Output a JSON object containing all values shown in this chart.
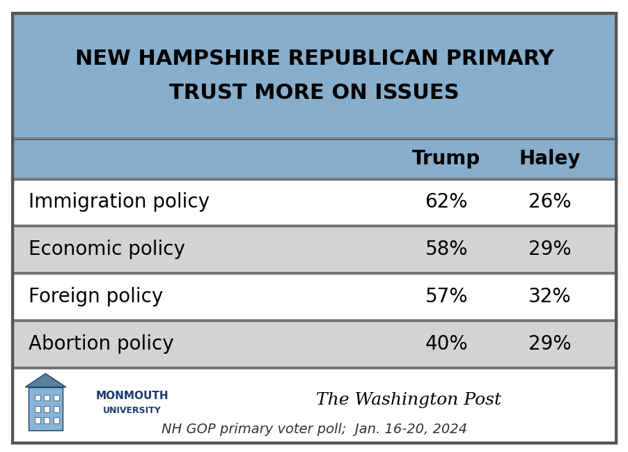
{
  "title_line1": "NEW HAMPSHIRE REPUBLICAN PRIMARY",
  "title_line2": "TRUST MORE ON ISSUES",
  "header_bg": "#87AECC",
  "col1_header": "Trump",
  "col2_header": "Haley",
  "rows": [
    {
      "label": "Immigration policy",
      "trump": "62%",
      "haley": "26%",
      "bg": "#FFFFFF"
    },
    {
      "label": "Economic policy",
      "trump": "58%",
      "haley": "29%",
      "bg": "#D3D3D3"
    },
    {
      "label": "Foreign policy",
      "trump": "57%",
      "haley": "32%",
      "bg": "#FFFFFF"
    },
    {
      "label": "Abortion policy",
      "trump": "40%",
      "haley": "29%",
      "bg": "#D3D3D3"
    }
  ],
  "footer_bg": "#FFFFFF",
  "footer_text": "NH GOP primary voter poll;  Jan. 16-20, 2024",
  "border_color": "#888888",
  "title_fontsize": 22,
  "header_fontsize": 20,
  "row_fontsize": 20,
  "footer_fontsize": 14,
  "outer_border_color": "#555555",
  "outer_border_lw": 2.5
}
